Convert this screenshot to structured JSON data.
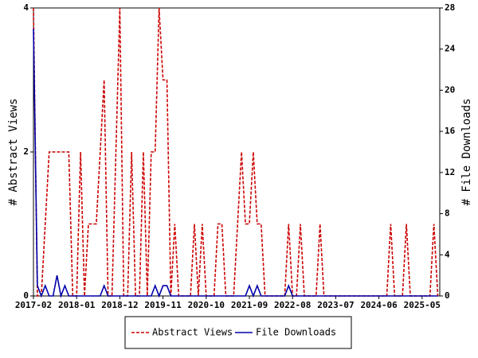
{
  "chart_data": {
    "type": "line",
    "categories": [
      "2017-02",
      null,
      null,
      null,
      null,
      null,
      null,
      null,
      null,
      null,
      null,
      "2018-01",
      null,
      null,
      null,
      null,
      null,
      null,
      null,
      null,
      null,
      null,
      "2018-12",
      null,
      null,
      null,
      null,
      null,
      null,
      null,
      null,
      null,
      null,
      "2019-11",
      null,
      null,
      null,
      null,
      null,
      null,
      null,
      null,
      null,
      null,
      "2020-10",
      null,
      null,
      null,
      null,
      null,
      null,
      null,
      null,
      null,
      null,
      "2021-09",
      null,
      null,
      null,
      null,
      null,
      null,
      null,
      null,
      null,
      null,
      "2022-08",
      null,
      null,
      null,
      null,
      null,
      null,
      null,
      null,
      null,
      null,
      "2023-07",
      null,
      null,
      null,
      null,
      null,
      null,
      null,
      null,
      null,
      null,
      "2024-06",
      null,
      null,
      null,
      null,
      null,
      null,
      null,
      null,
      null,
      null,
      "2025-05",
      null,
      null,
      null,
      null
    ],
    "series": [
      {
        "name": "Abstract Views",
        "color": "#cc0000",
        "dashed": true,
        "values": [
          4,
          0,
          0,
          1,
          2,
          2,
          2,
          2,
          2,
          2,
          0,
          0,
          2,
          0,
          1,
          1,
          1,
          2,
          3,
          0,
          0,
          2,
          4,
          0,
          0,
          2,
          0,
          0,
          2,
          0,
          2,
          2,
          4,
          3,
          3,
          0,
          1,
          0,
          0,
          0,
          0,
          1,
          0,
          1,
          0,
          0,
          0,
          1,
          1,
          0,
          0,
          0,
          1,
          2,
          1,
          1,
          2,
          1,
          1,
          0,
          0,
          0,
          0,
          0,
          0,
          1,
          0,
          0,
          1,
          0,
          0,
          0,
          0,
          1,
          0,
          0,
          0,
          0,
          0,
          0,
          0,
          0,
          0,
          0,
          0,
          0,
          0,
          0,
          0,
          0,
          0,
          1,
          0,
          0,
          0,
          1,
          0,
          0,
          0,
          0,
          0,
          0,
          1,
          0
        ]
      },
      {
        "name": "File Downloads",
        "color": "#0000aa",
        "dashed": false,
        "axis": "y2",
        "values": [
          26,
          1,
          0,
          1,
          0,
          0,
          2,
          0,
          1,
          0,
          0,
          0,
          0,
          0,
          0,
          0,
          0,
          0,
          1,
          0,
          0,
          0,
          0,
          0,
          0,
          0,
          0,
          0,
          0,
          0,
          0,
          1,
          0,
          1,
          1,
          0,
          0,
          0,
          0,
          0,
          0,
          0,
          0,
          0,
          0,
          0,
          0,
          0,
          0,
          0,
          0,
          0,
          0,
          0,
          0,
          1,
          0,
          1,
          0,
          0,
          0,
          0,
          0,
          0,
          0,
          1,
          0,
          0,
          0,
          0,
          0,
          0,
          0,
          0,
          0,
          0,
          0,
          0,
          0,
          0,
          0,
          0,
          0,
          0,
          0,
          0,
          0,
          0,
          0,
          0,
          0,
          0,
          0,
          0,
          0,
          0,
          0,
          0,
          0,
          0,
          0,
          0,
          0,
          0
        ]
      }
    ],
    "ylabel": "# Abstract Views",
    "y2label": "# File Downloads",
    "ylim": [
      0,
      4
    ],
    "yticks": [
      0,
      2,
      4
    ],
    "y2lim": [
      0,
      28
    ],
    "y2ticks": [
      0,
      4,
      8,
      12,
      16,
      20,
      24,
      28
    ],
    "legend": "bottom"
  }
}
